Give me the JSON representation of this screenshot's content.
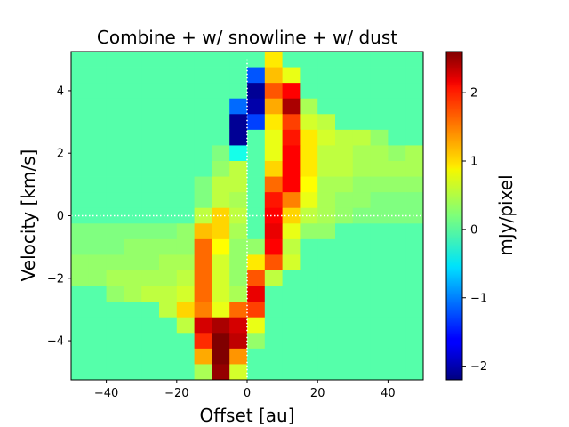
{
  "chart_data": {
    "type": "heatmap",
    "title": "Combine + w/ snowline + w/ dust",
    "xlabel": "Offset [au]",
    "ylabel": "Velocity [km/s]",
    "colorbar_label": "mJy/pixel",
    "colormap": "jet",
    "xlim": [
      -50,
      50
    ],
    "ylim": [
      -5.25,
      5.25
    ],
    "vmin": -2.2,
    "vmax": 2.6,
    "x_ticks": [
      -40,
      -20,
      0,
      20,
      40
    ],
    "x_tick_labels": [
      "−40",
      "−20",
      "0",
      "20",
      "40"
    ],
    "y_ticks": [
      -4,
      -2,
      0,
      2,
      4
    ],
    "y_tick_labels": [
      "−4",
      "−2",
      "0",
      "2",
      "4"
    ],
    "colorbar_ticks": [
      -2,
      -1,
      0,
      1,
      2
    ],
    "colorbar_tick_labels": [
      "−2",
      "−1",
      "0",
      "1",
      "2"
    ],
    "reference_lines": {
      "x": 0,
      "y": 0,
      "style": "dotted",
      "color": "#ffffff"
    },
    "x_centers": [
      -47.5,
      -42.5,
      -37.5,
      -32.5,
      -27.5,
      -22.5,
      -17.5,
      -12.5,
      -7.5,
      -2.5,
      2.5,
      7.5,
      12.5,
      17.5,
      22.5,
      27.5,
      32.5,
      37.5,
      42.5,
      47.5
    ],
    "y_centers": [
      5.0,
      4.5,
      4.0,
      3.5,
      3.0,
      2.5,
      2.0,
      1.5,
      1.0,
      0.5,
      0.0,
      -0.5,
      -1.0,
      -1.5,
      -2.0,
      -2.5,
      -3.0,
      -3.5,
      -4.0,
      -4.5,
      -5.0
    ],
    "values": [
      [
        0,
        0,
        0,
        0,
        0,
        0,
        0,
        0,
        0,
        0,
        0,
        0.9,
        0,
        0,
        0,
        0,
        0,
        0,
        0,
        0
      ],
      [
        0,
        0,
        0,
        0,
        0,
        0,
        0,
        0,
        0,
        0,
        -1.2,
        1.1,
        0.7,
        0,
        0,
        0,
        0,
        0,
        0,
        0
      ],
      [
        0,
        0,
        0,
        0,
        0,
        0,
        0,
        0,
        0,
        0,
        -2.1,
        1.6,
        2.0,
        0,
        0,
        0,
        0,
        0,
        0,
        0
      ],
      [
        0,
        0,
        0,
        0,
        0,
        0,
        0,
        0,
        0,
        -1.1,
        -2.0,
        1.2,
        2.4,
        0.4,
        0,
        0,
        0,
        0,
        0,
        0
      ],
      [
        0,
        0,
        0,
        0,
        0,
        0,
        0,
        0,
        0,
        -2.1,
        -1.3,
        0.9,
        1.7,
        0.6,
        0.5,
        0,
        0,
        0,
        0,
        0
      ],
      [
        0,
        0,
        0,
        0,
        0,
        0,
        0,
        0,
        0,
        -2.1,
        0,
        0.7,
        1.9,
        0.9,
        0.6,
        0.5,
        0.5,
        0.3,
        0,
        0
      ],
      [
        0,
        0,
        0,
        0,
        0,
        0,
        0,
        0,
        0.2,
        -0.3,
        0,
        0.7,
        2.0,
        0.9,
        0.5,
        0.5,
        0.4,
        0.4,
        0.3,
        0.4
      ],
      [
        0,
        0,
        0,
        0,
        0,
        0,
        0,
        0,
        0.3,
        0.5,
        0,
        1.0,
        2.0,
        0.9,
        0.5,
        0.5,
        0.4,
        0.4,
        0.4,
        0.4
      ],
      [
        0,
        0,
        0,
        0,
        0,
        0,
        0,
        0.2,
        0.5,
        0.5,
        0,
        1.5,
        2.0,
        0.8,
        0.4,
        0.4,
        0.3,
        0.3,
        0.3,
        0.3
      ],
      [
        0,
        0,
        0,
        0,
        0,
        0,
        0,
        0.2,
        0.5,
        0.4,
        0,
        1.9,
        1.4,
        0.7,
        0.4,
        0.3,
        0.3,
        0.2,
        0.2,
        0.2
      ],
      [
        0,
        0,
        0,
        0,
        0,
        0,
        0,
        0.5,
        1.0,
        0.5,
        0,
        2.0,
        1.0,
        0.5,
        0.4,
        0.3,
        0.2,
        0.2,
        0.2,
        0.2
      ],
      [
        0.2,
        0.2,
        0.2,
        0.2,
        0.2,
        0.2,
        0.3,
        1.1,
        1.0,
        0.4,
        0,
        2.1,
        0.7,
        0.3,
        0.3,
        0,
        0,
        0,
        0,
        0
      ],
      [
        0.2,
        0.2,
        0.2,
        0.3,
        0.3,
        0.3,
        0.3,
        1.5,
        0.8,
        0.3,
        0.3,
        2.0,
        0.5,
        0,
        0,
        0,
        0,
        0,
        0,
        0
      ],
      [
        0.3,
        0.3,
        0.3,
        0.3,
        0.3,
        0.4,
        0.4,
        1.5,
        0.6,
        0.3,
        0.9,
        1.6,
        0.6,
        0,
        0,
        0,
        0,
        0,
        0,
        0
      ],
      [
        0.3,
        0.3,
        0.4,
        0.4,
        0.4,
        0.4,
        0.5,
        1.5,
        0.6,
        0.3,
        1.6,
        0.5,
        0,
        0,
        0,
        0,
        0,
        0,
        0,
        0
      ],
      [
        0,
        0,
        0.3,
        0.4,
        0.5,
        0.5,
        0.6,
        1.5,
        0.6,
        0.4,
        2.1,
        0,
        0,
        0,
        0,
        0,
        0,
        0,
        0,
        0
      ],
      [
        0,
        0,
        0,
        0,
        0,
        0.5,
        1.0,
        1.4,
        0.7,
        1.5,
        1.7,
        0,
        0,
        0,
        0,
        0,
        0,
        0,
        0,
        0
      ],
      [
        0,
        0,
        0,
        0,
        0,
        0,
        0.5,
        2.2,
        2.4,
        2.2,
        0.7,
        0,
        0,
        0,
        0,
        0,
        0,
        0,
        0,
        0
      ],
      [
        0,
        0,
        0,
        0,
        0,
        0,
        0,
        1.8,
        2.6,
        2.3,
        0.3,
        0,
        0,
        0,
        0,
        0,
        0,
        0,
        0,
        0
      ],
      [
        0,
        0,
        0,
        0,
        0,
        0,
        0,
        1.2,
        2.6,
        1.3,
        0,
        0,
        0,
        0,
        0,
        0,
        0,
        0,
        0,
        0
      ],
      [
        0,
        0,
        0,
        0,
        0,
        0,
        0,
        0.4,
        2.5,
        0.6,
        0,
        0,
        0,
        0,
        0,
        0,
        0,
        0,
        0,
        0
      ]
    ]
  }
}
